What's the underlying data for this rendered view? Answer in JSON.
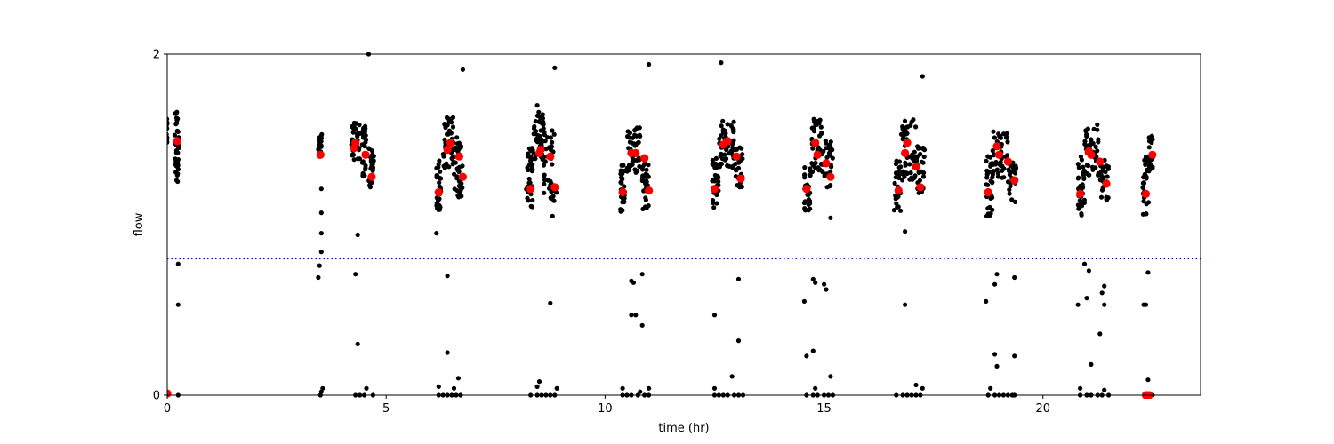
{
  "chart_data": {
    "type": "scatter",
    "xlabel": "time (hr)",
    "ylabel": "flow",
    "xlim": [
      0,
      23.6
    ],
    "ylim": [
      0,
      2
    ],
    "xticks": [
      {
        "v": 0,
        "label": "0"
      },
      {
        "v": 5,
        "label": "5"
      },
      {
        "v": 10,
        "label": "10"
      },
      {
        "v": 15,
        "label": "15"
      },
      {
        "v": 20,
        "label": "20"
      }
    ],
    "yticks": [
      {
        "v": 0,
        "label": "0"
      },
      {
        "v": 2,
        "label": "2"
      }
    ],
    "threshold": {
      "y": 0.8,
      "color": "#0000ff",
      "style": "dotted"
    },
    "grid": false,
    "legend": "none",
    "colors": {
      "samples": "#000000",
      "means": "#ff0000"
    },
    "clusters": [
      {
        "x0": -0.02,
        "x1": 0.0,
        "lo": 1.45,
        "hi": 1.62,
        "n": 14
      },
      {
        "x0": 0.17,
        "x1": 0.27,
        "lo": 1.25,
        "hi": 1.68,
        "n": 40
      },
      {
        "x0": 3.45,
        "x1": 3.55,
        "lo": 1.4,
        "hi": 1.53,
        "n": 16
      },
      {
        "x0": 4.2,
        "x1": 4.4,
        "lo": 1.38,
        "hi": 1.6,
        "n": 40
      },
      {
        "x0": 4.45,
        "x1": 4.55,
        "lo": 1.26,
        "hi": 1.58,
        "n": 26
      },
      {
        "x0": 4.6,
        "x1": 4.72,
        "lo": 1.22,
        "hi": 1.45,
        "n": 26
      },
      {
        "x0": 6.15,
        "x1": 6.25,
        "lo": 1.07,
        "hi": 1.38,
        "n": 30
      },
      {
        "x0": 6.3,
        "x1": 6.55,
        "lo": 1.33,
        "hi": 1.64,
        "n": 44
      },
      {
        "x0": 6.55,
        "x1": 6.75,
        "lo": 1.16,
        "hi": 1.52,
        "n": 36
      },
      {
        "x0": 8.2,
        "x1": 8.35,
        "lo": 1.1,
        "hi": 1.45,
        "n": 34
      },
      {
        "x0": 8.35,
        "x1": 8.6,
        "lo": 1.38,
        "hi": 1.67,
        "n": 44
      },
      {
        "x0": 8.6,
        "x1": 8.92,
        "lo": 1.14,
        "hi": 1.58,
        "n": 42
      },
      {
        "x0": 10.35,
        "x1": 10.45,
        "lo": 1.07,
        "hi": 1.38,
        "n": 30
      },
      {
        "x0": 10.5,
        "x1": 10.8,
        "lo": 1.3,
        "hi": 1.58,
        "n": 44
      },
      {
        "x0": 10.85,
        "x1": 11.0,
        "lo": 1.08,
        "hi": 1.4,
        "n": 34
      },
      {
        "x0": 12.45,
        "x1": 12.6,
        "lo": 1.1,
        "hi": 1.4,
        "n": 32
      },
      {
        "x0": 12.6,
        "x1": 12.95,
        "lo": 1.32,
        "hi": 1.62,
        "n": 48
      },
      {
        "x0": 12.95,
        "x1": 13.15,
        "lo": 1.22,
        "hi": 1.46,
        "n": 30
      },
      {
        "x0": 14.55,
        "x1": 14.7,
        "lo": 1.08,
        "hi": 1.35,
        "n": 32
      },
      {
        "x0": 14.7,
        "x1": 14.95,
        "lo": 1.3,
        "hi": 1.62,
        "n": 42
      },
      {
        "x0": 14.95,
        "x1": 15.2,
        "lo": 1.22,
        "hi": 1.52,
        "n": 34
      },
      {
        "x0": 16.6,
        "x1": 16.75,
        "lo": 1.08,
        "hi": 1.4,
        "n": 32
      },
      {
        "x0": 16.75,
        "x1": 17.1,
        "lo": 1.26,
        "hi": 1.62,
        "n": 48
      },
      {
        "x0": 17.1,
        "x1": 17.3,
        "lo": 1.18,
        "hi": 1.46,
        "n": 30
      },
      {
        "x0": 18.7,
        "x1": 18.85,
        "lo": 1.05,
        "hi": 1.42,
        "n": 34
      },
      {
        "x0": 18.85,
        "x1": 19.2,
        "lo": 1.27,
        "hi": 1.55,
        "n": 44
      },
      {
        "x0": 19.2,
        "x1": 19.4,
        "lo": 1.12,
        "hi": 1.38,
        "n": 28
      },
      {
        "x0": 20.8,
        "x1": 20.95,
        "lo": 1.05,
        "hi": 1.4,
        "n": 32
      },
      {
        "x0": 20.95,
        "x1": 21.3,
        "lo": 1.26,
        "hi": 1.6,
        "n": 44
      },
      {
        "x0": 21.3,
        "x1": 21.5,
        "lo": 1.14,
        "hi": 1.38,
        "n": 28
      },
      {
        "x0": 22.28,
        "x1": 22.42,
        "lo": 1.06,
        "hi": 1.4,
        "n": 32
      },
      {
        "x0": 22.42,
        "x1": 22.52,
        "lo": 1.3,
        "hi": 1.52,
        "n": 20
      }
    ],
    "outliers": [
      [
        0.25,
        0.77
      ],
      [
        0.25,
        0.53
      ],
      [
        3.45,
        0.69
      ],
      [
        3.48,
        0.76
      ],
      [
        3.52,
        0.84
      ],
      [
        3.52,
        0.95
      ],
      [
        3.52,
        1.07
      ],
      [
        3.52,
        1.21
      ],
      [
        4.3,
        0.71
      ],
      [
        4.35,
        0.94
      ],
      [
        4.35,
        0.3
      ],
      [
        4.6,
        2.0
      ],
      [
        6.15,
        0.95
      ],
      [
        6.4,
        0.7
      ],
      [
        6.4,
        0.25
      ],
      [
        6.75,
        1.91
      ],
      [
        8.75,
        0.54
      ],
      [
        8.8,
        1.05
      ],
      [
        8.85,
        1.92
      ],
      [
        8.45,
        1.7
      ],
      [
        10.6,
        0.67
      ],
      [
        10.65,
        0.66
      ],
      [
        10.6,
        0.47
      ],
      [
        10.7,
        0.47
      ],
      [
        10.85,
        0.71
      ],
      [
        10.85,
        0.41
      ],
      [
        11.0,
        1.94
      ],
      [
        12.5,
        0.47
      ],
      [
        12.65,
        1.95
      ],
      [
        13.05,
        0.68
      ],
      [
        13.05,
        0.32
      ],
      [
        14.55,
        0.55
      ],
      [
        14.6,
        0.23
      ],
      [
        14.75,
        0.68
      ],
      [
        14.8,
        0.66
      ],
      [
        14.75,
        0.26
      ],
      [
        15.0,
        0.65
      ],
      [
        15.05,
        0.62
      ],
      [
        15.15,
        1.04
      ],
      [
        16.85,
        0.53
      ],
      [
        16.85,
        0.96
      ],
      [
        17.25,
        1.87
      ],
      [
        18.7,
        0.55
      ],
      [
        18.9,
        0.65
      ],
      [
        18.95,
        0.71
      ],
      [
        18.9,
        0.24
      ],
      [
        18.95,
        0.17
      ],
      [
        19.35,
        0.69
      ],
      [
        19.35,
        0.23
      ],
      [
        20.8,
        0.53
      ],
      [
        20.95,
        0.77
      ],
      [
        21.0,
        0.57
      ],
      [
        21.05,
        0.73
      ],
      [
        21.1,
        0.18
      ],
      [
        21.3,
        0.36
      ],
      [
        21.35,
        0.6
      ],
      [
        21.4,
        0.64
      ],
      [
        21.4,
        0.53
      ],
      [
        22.3,
        0.53
      ],
      [
        22.35,
        0.53
      ],
      [
        22.4,
        0.72
      ],
      [
        22.4,
        0.09
      ],
      [
        0.0,
        0.0
      ],
      [
        0.25,
        0.0
      ],
      [
        3.5,
        0.0
      ],
      [
        3.52,
        0.02
      ],
      [
        3.55,
        0.04
      ],
      [
        4.3,
        0.0
      ],
      [
        4.4,
        0.0
      ],
      [
        4.5,
        0.0
      ],
      [
        4.55,
        0.04
      ],
      [
        4.7,
        0.0
      ],
      [
        6.2,
        0.0
      ],
      [
        6.3,
        0.0
      ],
      [
        6.4,
        0.0
      ],
      [
        6.5,
        0.0
      ],
      [
        6.6,
        0.0
      ],
      [
        6.7,
        0.0
      ],
      [
        6.2,
        0.05
      ],
      [
        6.55,
        0.04
      ],
      [
        6.65,
        0.1
      ],
      [
        8.3,
        0.0
      ],
      [
        8.45,
        0.0
      ],
      [
        8.55,
        0.0
      ],
      [
        8.65,
        0.0
      ],
      [
        8.75,
        0.0
      ],
      [
        8.85,
        0.0
      ],
      [
        8.45,
        0.05
      ],
      [
        8.5,
        0.08
      ],
      [
        8.9,
        0.04
      ],
      [
        10.4,
        0.0
      ],
      [
        10.5,
        0.0
      ],
      [
        10.6,
        0.0
      ],
      [
        10.75,
        0.0
      ],
      [
        10.9,
        0.0
      ],
      [
        11.0,
        0.0
      ],
      [
        10.4,
        0.04
      ],
      [
        10.8,
        0.02
      ],
      [
        11.0,
        0.04
      ],
      [
        12.5,
        0.0
      ],
      [
        12.6,
        0.0
      ],
      [
        12.7,
        0.0
      ],
      [
        12.8,
        0.0
      ],
      [
        12.95,
        0.0
      ],
      [
        13.05,
        0.0
      ],
      [
        13.15,
        0.0
      ],
      [
        12.5,
        0.04
      ],
      [
        12.9,
        0.11
      ],
      [
        14.6,
        0.0
      ],
      [
        14.75,
        0.0
      ],
      [
        14.85,
        0.0
      ],
      [
        15.0,
        0.0
      ],
      [
        15.1,
        0.0
      ],
      [
        15.2,
        0.0
      ],
      [
        14.8,
        0.04
      ],
      [
        15.15,
        0.11
      ],
      [
        16.65,
        0.0
      ],
      [
        16.8,
        0.0
      ],
      [
        16.9,
        0.0
      ],
      [
        17.0,
        0.0
      ],
      [
        17.1,
        0.0
      ],
      [
        17.2,
        0.0
      ],
      [
        17.1,
        0.06
      ],
      [
        17.25,
        0.04
      ],
      [
        18.75,
        0.0
      ],
      [
        18.9,
        0.0
      ],
      [
        19.0,
        0.0
      ],
      [
        19.1,
        0.0
      ],
      [
        19.2,
        0.0
      ],
      [
        19.3,
        0.0
      ],
      [
        19.35,
        0.0
      ],
      [
        18.8,
        0.04
      ],
      [
        20.85,
        0.0
      ],
      [
        21.0,
        0.0
      ],
      [
        21.1,
        0.0
      ],
      [
        21.25,
        0.0
      ],
      [
        21.35,
        0.0
      ],
      [
        21.5,
        0.0
      ],
      [
        20.85,
        0.04
      ],
      [
        21.4,
        0.03
      ],
      [
        22.35,
        0.0
      ],
      [
        22.45,
        0.0
      ],
      [
        22.5,
        0.0
      ]
    ],
    "means": [
      [
        0.0,
        0.01
      ],
      [
        0.23,
        1.49
      ],
      [
        3.5,
        1.41
      ],
      [
        4.27,
        1.45
      ],
      [
        4.3,
        1.48
      ],
      [
        4.53,
        1.41
      ],
      [
        4.67,
        1.28
      ],
      [
        6.2,
        1.19
      ],
      [
        6.4,
        1.44
      ],
      [
        6.47,
        1.48
      ],
      [
        6.67,
        1.4
      ],
      [
        6.75,
        1.28
      ],
      [
        8.3,
        1.21
      ],
      [
        8.5,
        1.42
      ],
      [
        8.53,
        1.44
      ],
      [
        8.75,
        1.4
      ],
      [
        8.85,
        1.22
      ],
      [
        10.4,
        1.19
      ],
      [
        10.6,
        1.42
      ],
      [
        10.7,
        1.42
      ],
      [
        10.9,
        1.39
      ],
      [
        11.0,
        1.2
      ],
      [
        12.5,
        1.21
      ],
      [
        12.7,
        1.47
      ],
      [
        12.8,
        1.49
      ],
      [
        13.0,
        1.4
      ],
      [
        13.1,
        1.27
      ],
      [
        14.6,
        1.21
      ],
      [
        14.8,
        1.48
      ],
      [
        14.85,
        1.41
      ],
      [
        15.05,
        1.36
      ],
      [
        15.15,
        1.28
      ],
      [
        16.7,
        1.2
      ],
      [
        16.85,
        1.42
      ],
      [
        16.9,
        1.48
      ],
      [
        17.1,
        1.34
      ],
      [
        17.2,
        1.22
      ],
      [
        18.75,
        1.19
      ],
      [
        18.95,
        1.46
      ],
      [
        19.0,
        1.41
      ],
      [
        19.2,
        1.37
      ],
      [
        19.35,
        1.26
      ],
      [
        20.85,
        1.18
      ],
      [
        21.05,
        1.43
      ],
      [
        21.1,
        1.41
      ],
      [
        21.3,
        1.37
      ],
      [
        21.45,
        1.24
      ],
      [
        22.35,
        1.18
      ],
      [
        22.35,
        0.0
      ],
      [
        22.42,
        0.0
      ],
      [
        22.5,
        1.41
      ]
    ]
  }
}
